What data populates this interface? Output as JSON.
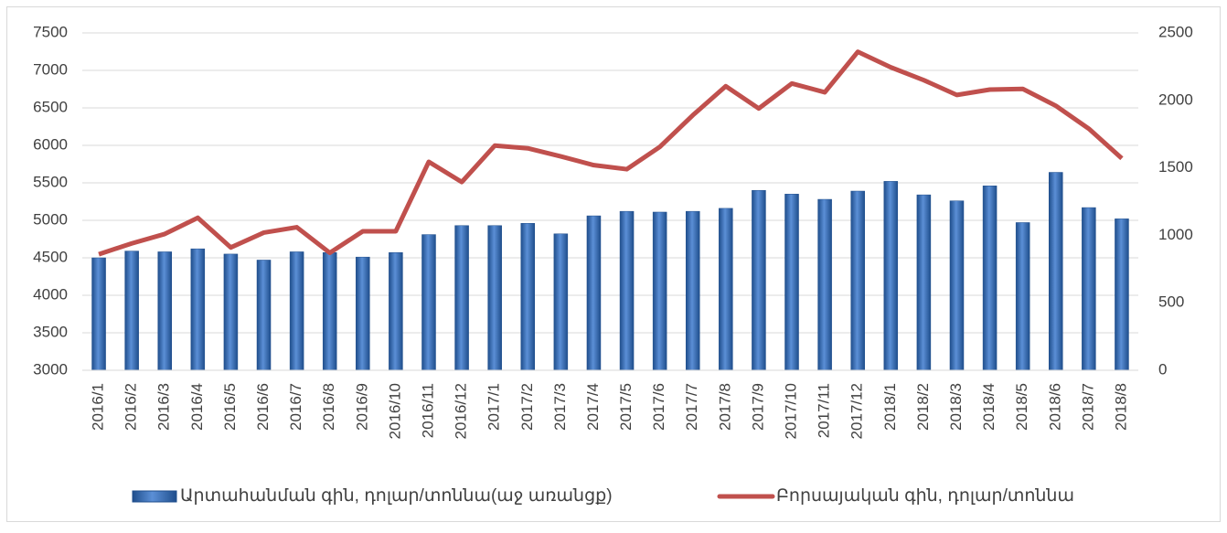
{
  "chart_data": {
    "type": "bar_line",
    "categories": [
      "2016/1",
      "2016/2",
      "2016/3",
      "2016/4",
      "2016/5",
      "2016/6",
      "2016/7",
      "2016/8",
      "2016/9",
      "2016/10",
      "2016/11",
      "2016/12",
      "2017/1",
      "2017/2",
      "2017/3",
      "2017/4",
      "2017/5",
      "2017/6",
      "2017/7",
      "2017/8",
      "2017/9",
      "2017/10",
      "2017/11",
      "2017/12",
      "2018/1",
      "2018/2",
      "2018/3",
      "2018/4",
      "2018/5",
      "2018/6",
      "2018/7",
      "2018/8"
    ],
    "series": [
      {
        "name": "Արտահանման գին, դոլար/տոննա(աջ առանցք)",
        "type": "bar",
        "axis": "y",
        "color": "#2e64b0",
        "values": [
          4500,
          4590,
          4580,
          4620,
          4550,
          4470,
          4580,
          4570,
          4510,
          4570,
          4810,
          4930,
          4930,
          4960,
          4820,
          5060,
          5120,
          5110,
          5120,
          5160,
          5400,
          5350,
          5280,
          5390,
          5520,
          5340,
          5260,
          5460,
          4970,
          5640,
          5170,
          5020
        ]
      },
      {
        "name": "Բորսայական գին, դոլար/տոննա",
        "type": "line",
        "axis": "y2",
        "color": "#c0504d",
        "values": [
          860,
          940,
          1010,
          1130,
          910,
          1020,
          1060,
          870,
          1030,
          1030,
          1545,
          1395,
          1665,
          1645,
          1585,
          1520,
          1490,
          1655,
          1890,
          2105,
          1940,
          2125,
          2060,
          2360,
          2245,
          2150,
          2040,
          2080,
          2085,
          1960,
          1790,
          1570
        ]
      }
    ],
    "ylim": [
      3000,
      7500
    ],
    "yticks": [
      3000,
      3500,
      4000,
      4500,
      5000,
      5500,
      6000,
      6500,
      7000,
      7500
    ],
    "y2lim": [
      0,
      2500
    ],
    "y2ticks": [
      0,
      500,
      1000,
      1500,
      2000,
      2500
    ],
    "grid": true
  }
}
